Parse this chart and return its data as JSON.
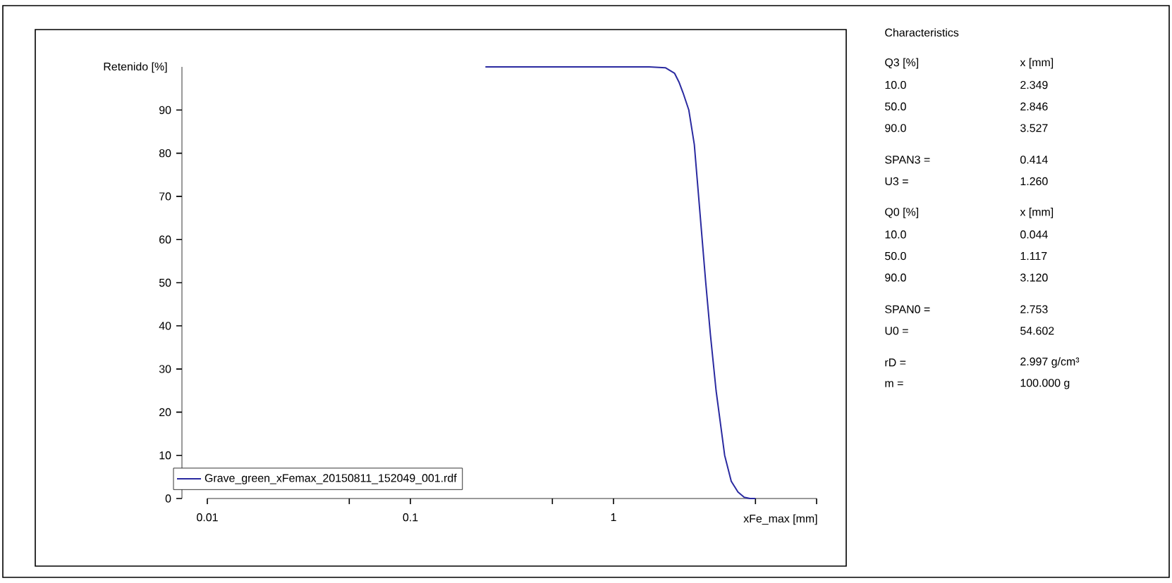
{
  "chart_data": {
    "type": "line",
    "ylabel": "Retenido [%]",
    "xlabel": "xFe_max [mm]",
    "log": "x",
    "xlim": [
      0.01,
      10
    ],
    "ylim": [
      0,
      100
    ],
    "xticks": [
      0.01,
      {
        "value": 0.05,
        "label": null
      },
      0.1,
      {
        "value": 0.5,
        "label": null
      },
      1,
      {
        "value": 5,
        "label": null
      },
      {
        "value": 10,
        "label": null
      }
    ],
    "yticks": [
      0,
      10,
      20,
      30,
      40,
      50,
      60,
      70,
      80,
      90
    ],
    "grid": false,
    "legend": "bottom left",
    "series": [
      {
        "name": "Grave_green_xFemax_20150811_152049_001.rdf",
        "color": "#2a2aa0",
        "x": [
          0.234,
          1.5,
          1.8,
          2.0,
          2.1,
          2.2,
          2.349,
          2.5,
          2.7,
          2.846,
          3.0,
          3.2,
          3.527,
          3.8,
          4.1,
          4.4,
          4.7,
          5.0
        ],
        "values": [
          100,
          100,
          99.8,
          98.5,
          96.5,
          94,
          90,
          82,
          63,
          50,
          38,
          25,
          10,
          4,
          1.5,
          0.3,
          0,
          0
        ]
      }
    ],
    "annotations": [
      "Characteristics",
      "Q3 [%]",
      "x [mm]",
      "10.0",
      "2.349",
      "50.0",
      "2.846",
      "90.0",
      "3.527",
      "SPAN3 =",
      "0.414",
      "U3 =",
      "1.260",
      "Q0 [%]",
      "x [mm]",
      "10.0",
      "0.044",
      "50.0",
      "1.117",
      "90.0",
      "3.120",
      "SPAN0 =",
      "2.753",
      "U0 =",
      "54.602",
      "rD =",
      "2.997 g/cm³",
      "m =",
      "100.000 g"
    ]
  }
}
